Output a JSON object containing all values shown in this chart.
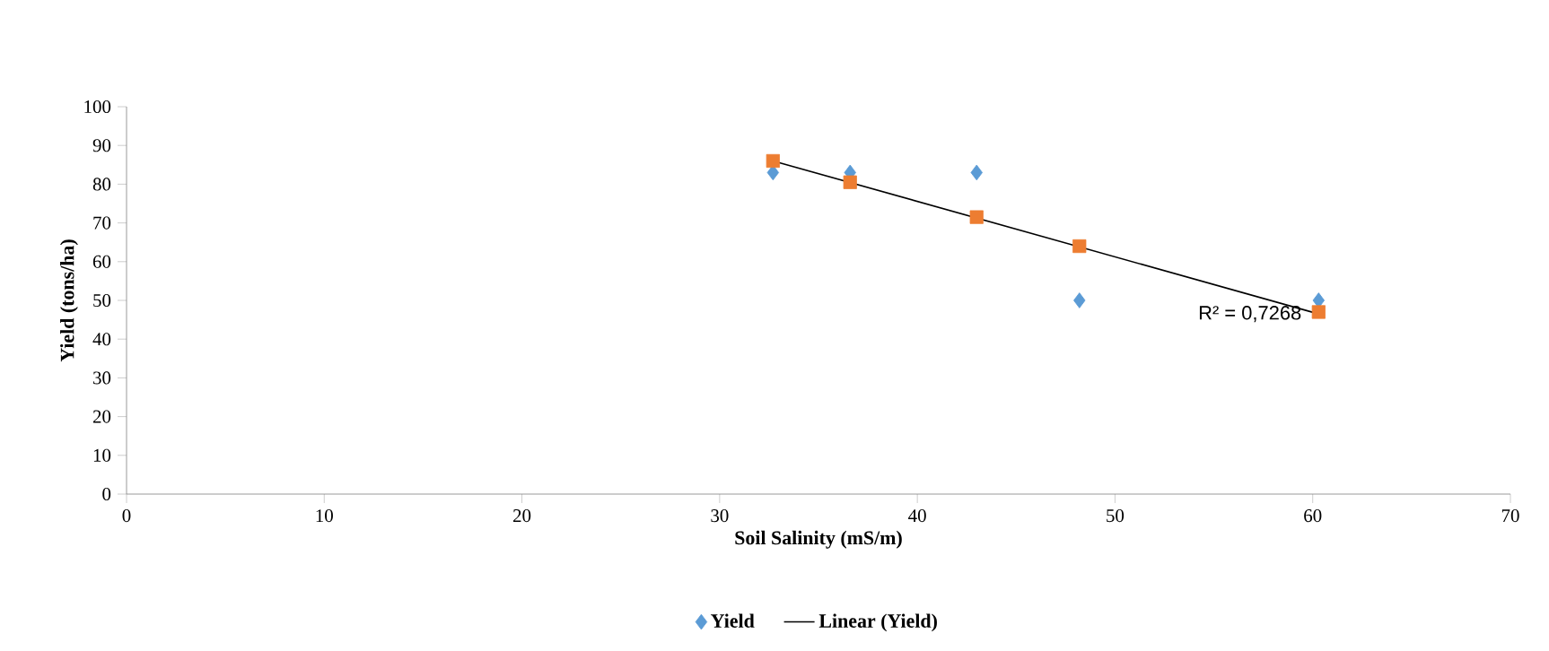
{
  "chart_data": {
    "type": "scatter",
    "xlabel": "Soil Salinity (mS/m)",
    "ylabel": "Yield (tons/ha)",
    "xlim": [
      0,
      70
    ],
    "ylim": [
      0,
      100
    ],
    "xticks": [
      0,
      10,
      20,
      30,
      40,
      50,
      60,
      70
    ],
    "yticks": [
      0,
      10,
      20,
      30,
      40,
      50,
      60,
      70,
      80,
      90,
      100
    ],
    "legend": "bottom",
    "series": [
      {
        "name": "Yield",
        "marker": "diamond",
        "color": "#5b9bd5",
        "x": [
          32.7,
          36.6,
          43.0,
          48.2,
          60.3
        ],
        "values": [
          83,
          83,
          83,
          50,
          50
        ]
      },
      {
        "marker": "square",
        "color": "#ed7d31",
        "x": [
          32.7,
          36.6,
          43.0,
          48.2,
          60.3
        ],
        "values": [
          86,
          80.5,
          71.5,
          64,
          47
        ]
      },
      {
        "name": "Linear (Yield)",
        "type": "line",
        "marker": "none",
        "color": "#000000",
        "x": [
          32.7,
          60.3
        ],
        "values": [
          86,
          46.5
        ]
      }
    ],
    "annotations": [
      {
        "text": "R² = 0,7268",
        "x": 60.3,
        "y": 46.5
      }
    ]
  }
}
